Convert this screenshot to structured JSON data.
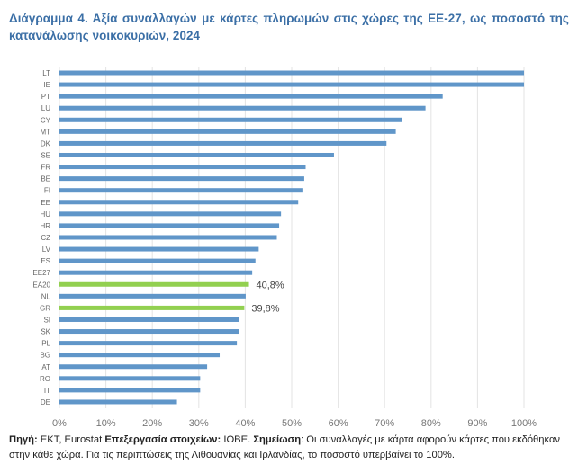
{
  "title": "Διάγραμμα 4. Αξία συναλλαγών με κάρτες πληρωμών στις χώρες της ΕΕ-27, ως ποσοστό της κατανάλωσης νοικοκυριών, 2024",
  "footnote": {
    "source_label": "Πηγή:",
    "source_text": " ΕΚΤ, Eurostat  ",
    "processing_label": "Επεξεργασία στοιχείων:",
    "processing_text": " ΙΟΒΕ. ",
    "note_label": "Σημείωση",
    "note_text": ": Οι συναλλαγές με κάρτα αφορούν κάρτες που εκδόθηκαν στην κάθε χώρα. Για τις περιπτώσεις της Λιθουανίας και Ιρλανδίας, το ποσοστό υπερβαίνει το 100%."
  },
  "colors": {
    "bar_default": "#6096c9",
    "bar_highlight": "#92d050",
    "gridline": "#e3e3e3",
    "title": "#3b6fa6"
  },
  "chart_data": {
    "type": "bar",
    "orientation": "horizontal",
    "title": "Διάγραμμα 4. Αξία συναλλαγών με κάρτες πληρωμών στις χώρες της ΕΕ-27, ως ποσοστό της κατανάλωσης νοικοκυριών, 2024",
    "xlabel": "",
    "ylabel": "",
    "xlim": [
      0,
      100
    ],
    "xticks": [
      "0%",
      "10%",
      "20%",
      "30%",
      "40%",
      "50%",
      "60%",
      "70%",
      "80%",
      "90%",
      "100%"
    ],
    "grid": true,
    "legend": "none",
    "categories": [
      "LT",
      "IE",
      "PT",
      "LU",
      "CY",
      "MT",
      "DK",
      "SE",
      "FR",
      "BE",
      "FI",
      "EE",
      "HU",
      "HR",
      "CZ",
      "LV",
      "ES",
      "EE27",
      "EA20",
      "NL",
      "GR",
      "SI",
      "SK",
      "PL",
      "BG",
      "AT",
      "RO",
      "IT",
      "DE"
    ],
    "values": [
      100,
      100,
      82.5,
      78.8,
      73.8,
      72.4,
      70.4,
      59.1,
      53.0,
      52.7,
      52.3,
      51.4,
      47.7,
      47.3,
      46.8,
      42.9,
      42.2,
      41.5,
      40.8,
      40.1,
      39.8,
      38.6,
      38.6,
      38.2,
      34.5,
      31.8,
      30.3,
      30.3,
      25.3
    ],
    "highlighted": [
      "EA20",
      "GR"
    ],
    "data_labels": [
      {
        "category": "EA20",
        "text": "40,8%"
      },
      {
        "category": "GR",
        "text": "39,8%"
      }
    ],
    "annotations": [
      "LT and IE exceed 100% (shown capped at 100%)"
    ]
  }
}
